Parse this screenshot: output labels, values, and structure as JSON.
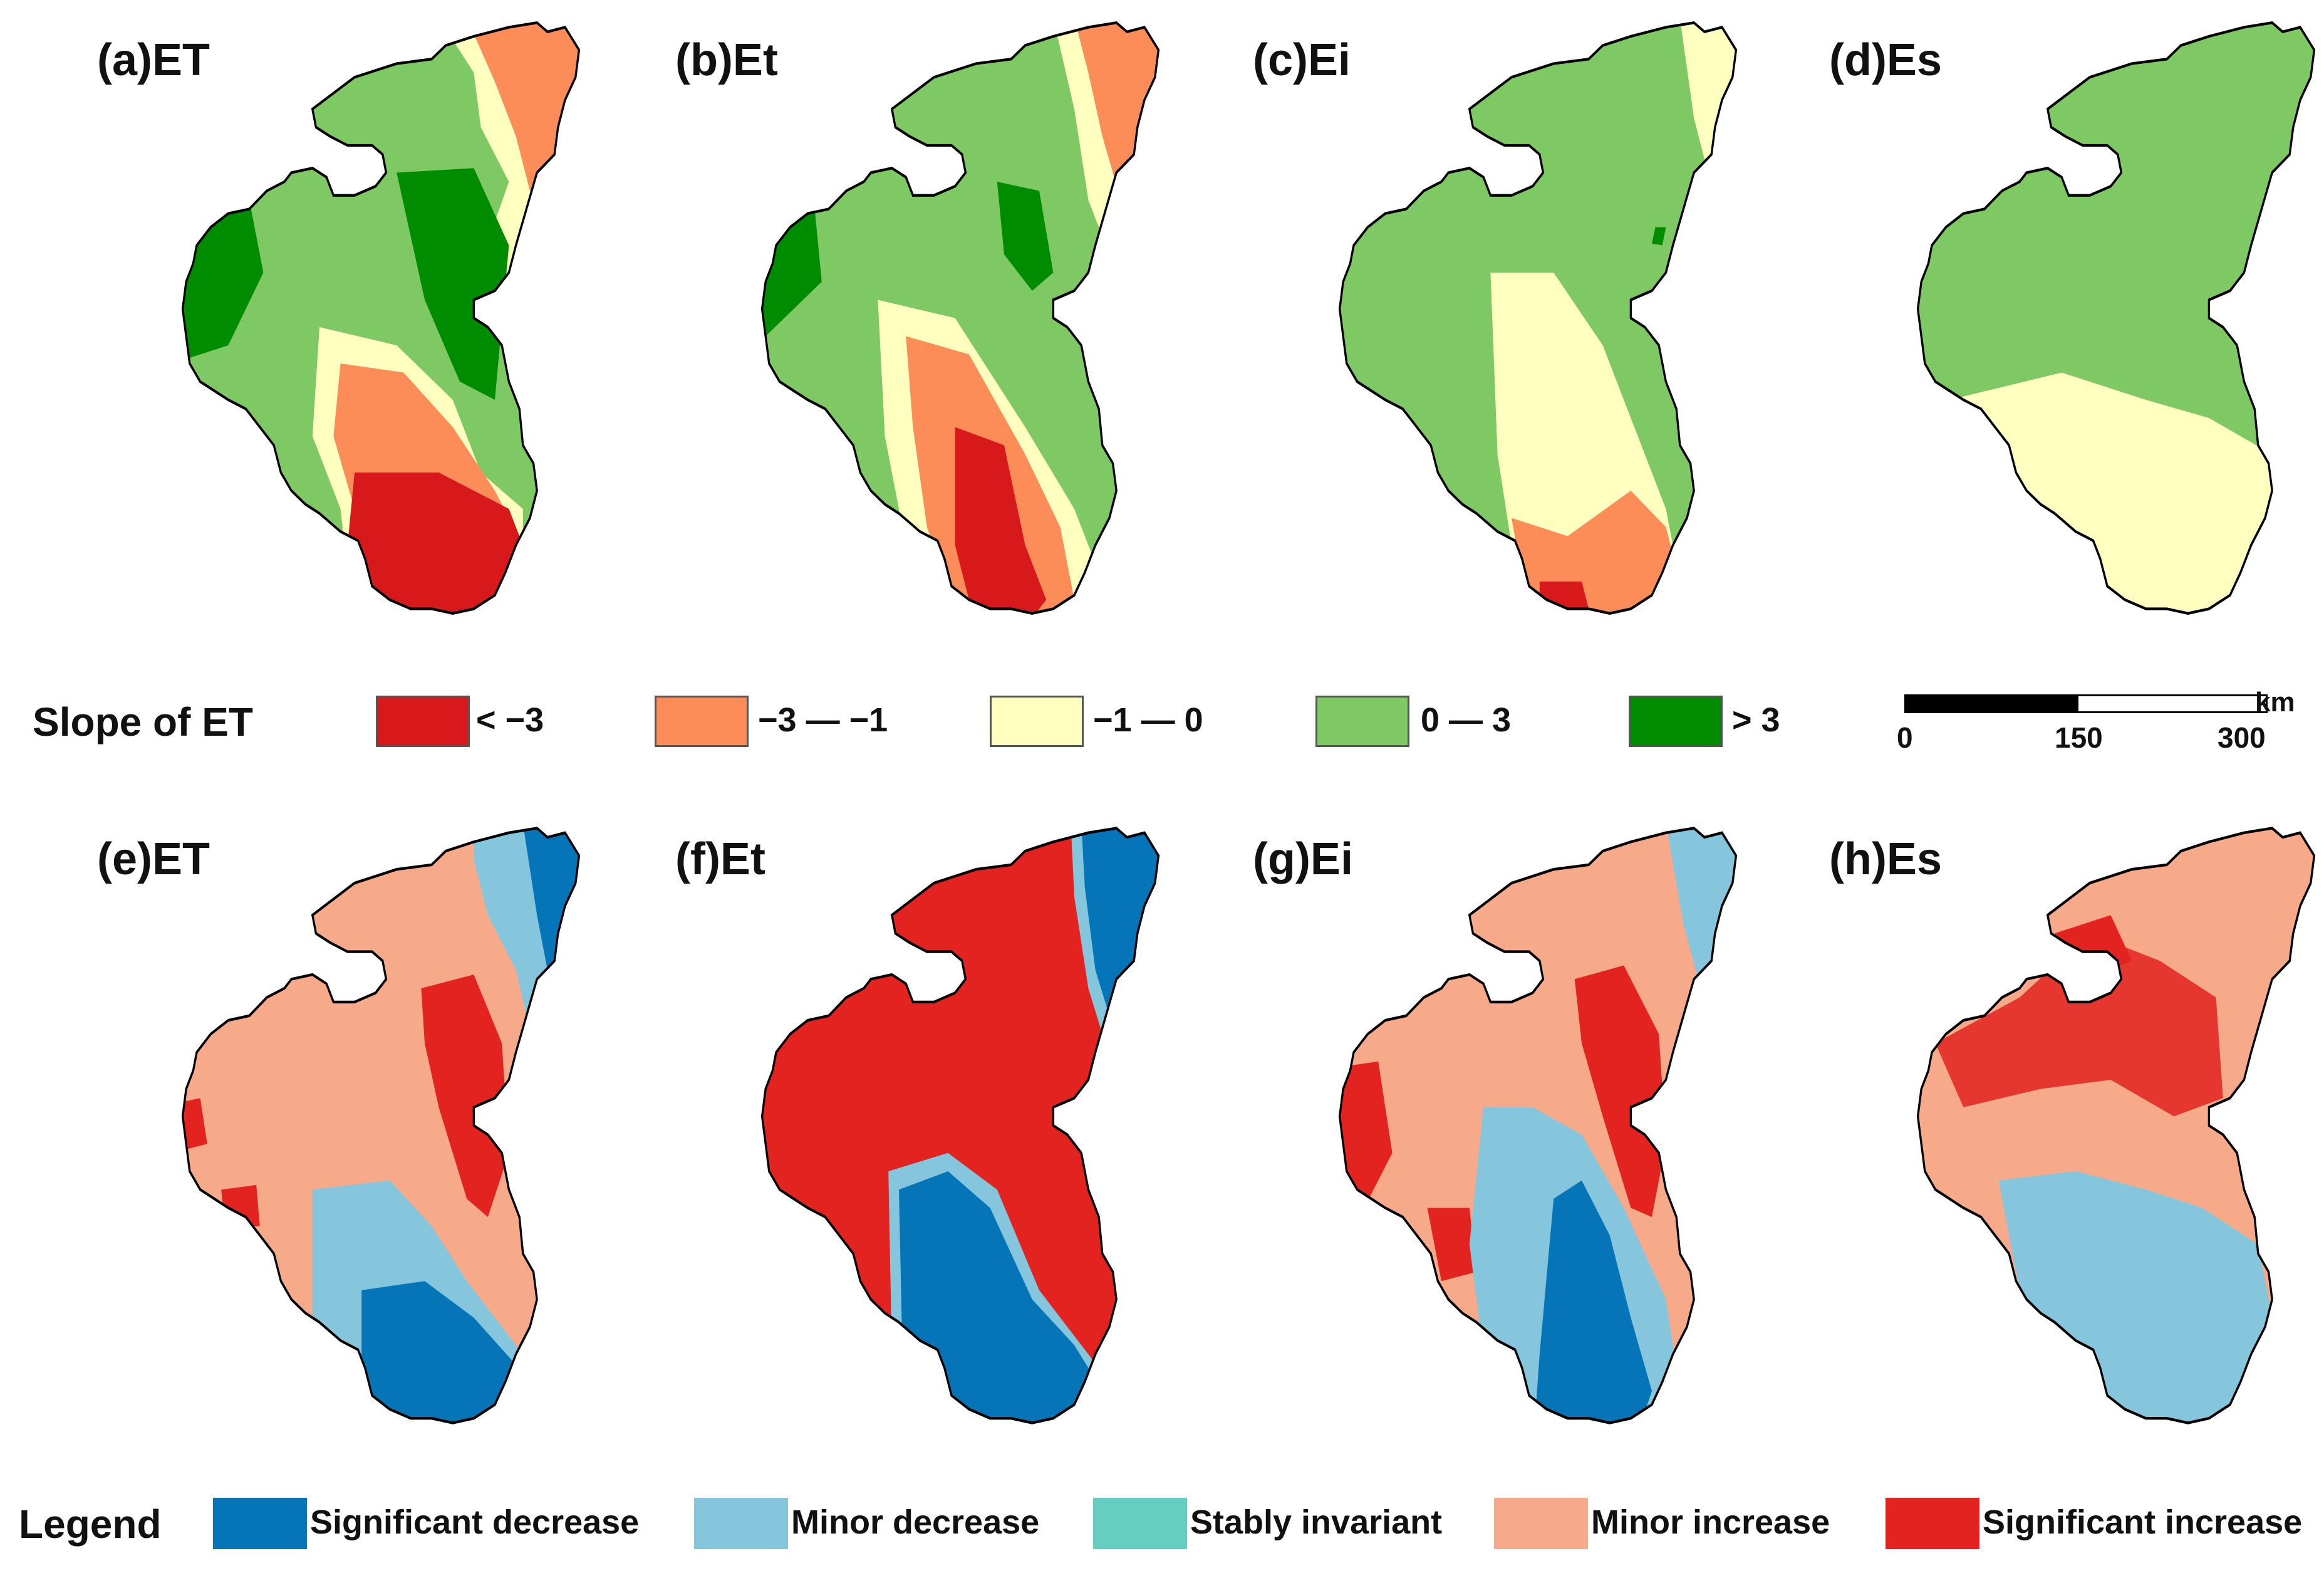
{
  "panels_top": [
    {
      "title": "(a)ET"
    },
    {
      "title": "(b)Et"
    },
    {
      "title": "(c)Ei"
    },
    {
      "title": "(d)Es"
    }
  ],
  "panels_bottom": [
    {
      "title": "(e)ET"
    },
    {
      "title": "(f)Et"
    },
    {
      "title": "(g)Ei"
    },
    {
      "title": "(h)Es"
    }
  ],
  "slope_legend": {
    "title": "Slope of ET",
    "classes": [
      {
        "label": "< −3",
        "color": "#d7191c"
      },
      {
        "label": "−3 — −1",
        "color": "#fc8d59"
      },
      {
        "label": "−1 — 0",
        "color": "#ffffbf"
      },
      {
        "label": "0 — 3",
        "color": "#7fc964"
      },
      {
        "label": "> 3",
        "color": "#008c00"
      }
    ]
  },
  "scale_bar": {
    "unit": "km",
    "ticks": [
      "0",
      "150",
      "300"
    ]
  },
  "trend_legend": {
    "title": "Legend",
    "classes": [
      {
        "label": "Significant decrease",
        "color": "#0575b8"
      },
      {
        "label": "Minor decrease",
        "color": "#85c6dd"
      },
      {
        "label": "Stably invariant",
        "color": "#66cdc1"
      },
      {
        "label": "Minor increase",
        "color": "#f7aa8a"
      },
      {
        "label": "Significant increase",
        "color": "#e2231f"
      }
    ]
  }
}
